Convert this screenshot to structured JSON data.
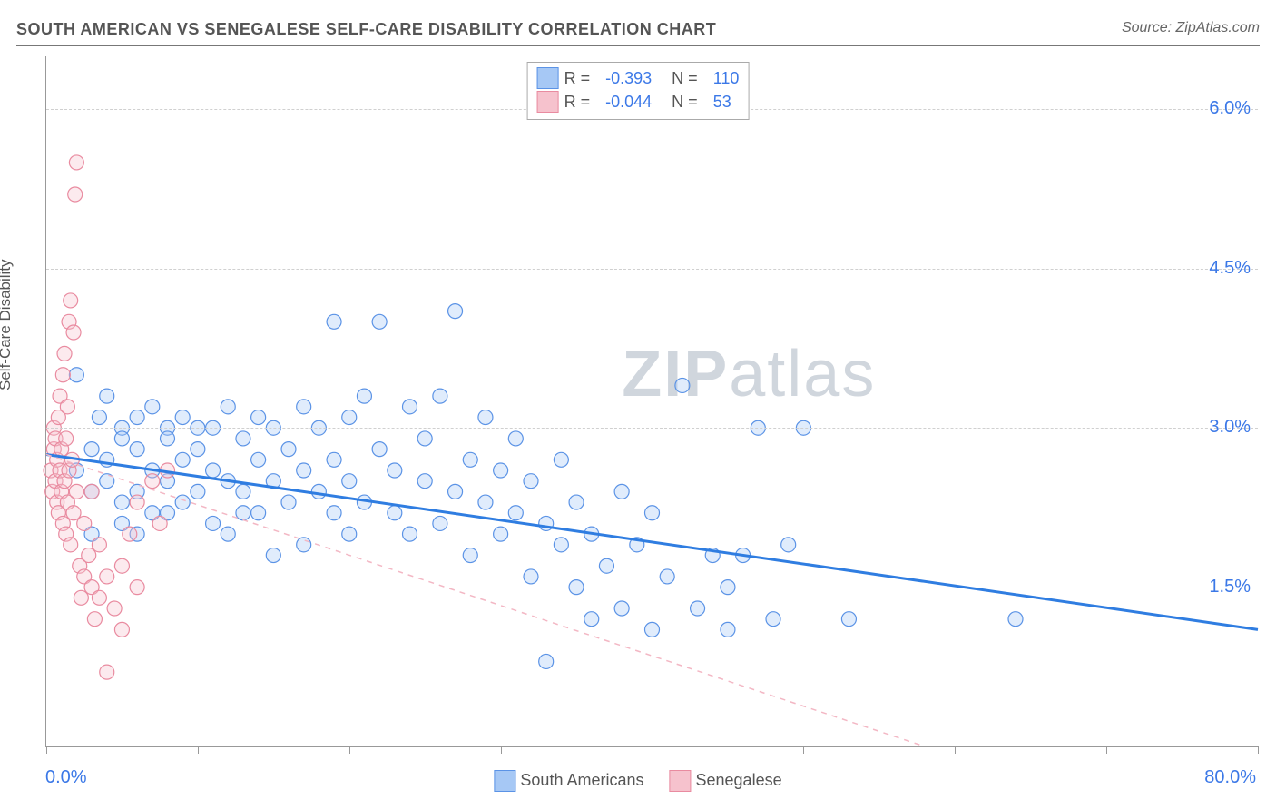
{
  "title": "SOUTH AMERICAN VS SENEGALESE SELF-CARE DISABILITY CORRELATION CHART",
  "source_label": "Source: ZipAtlas.com",
  "watermark": {
    "prefix": "ZIP",
    "suffix": "atlas"
  },
  "y_axis_title": "Self-Care Disability",
  "chart": {
    "type": "scatter",
    "background_color": "#ffffff",
    "grid_color": "#d0d0d0",
    "axis_color": "#999999",
    "tick_label_color": "#3b78e7",
    "xlim": [
      0,
      80
    ],
    "ylim": [
      0,
      6.5
    ],
    "x_tick_positions": [
      0,
      10,
      20,
      30,
      40,
      50,
      60,
      70,
      80
    ],
    "y_ticks": [
      {
        "v": 1.5,
        "label": "1.5%"
      },
      {
        "v": 3.0,
        "label": "3.0%"
      },
      {
        "v": 4.5,
        "label": "4.5%"
      },
      {
        "v": 6.0,
        "label": "6.0%"
      }
    ],
    "x_min_label": "0.0%",
    "x_max_label": "80.0%",
    "marker_radius": 8,
    "tick_fontsize": 20,
    "series": [
      {
        "id": "south_americans",
        "label": "South Americans",
        "color": "#a6c8f5",
        "stroke": "#5b93e6",
        "R": "-0.393",
        "N": "110",
        "trend": {
          "style": "solid",
          "color": "#2f7de1",
          "width": 3,
          "p1": {
            "x": 0,
            "y": 2.75
          },
          "p2": {
            "x": 80,
            "y": 1.1
          }
        },
        "points": [
          {
            "x": 2,
            "y": 2.6
          },
          {
            "x": 3,
            "y": 2.4
          },
          {
            "x": 3,
            "y": 2.8
          },
          {
            "x": 3.5,
            "y": 3.1
          },
          {
            "x": 4,
            "y": 2.5
          },
          {
            "x": 4,
            "y": 2.7
          },
          {
            "x": 5,
            "y": 3.0
          },
          {
            "x": 5,
            "y": 2.3
          },
          {
            "x": 5,
            "y": 2.9
          },
          {
            "x": 6,
            "y": 2.4
          },
          {
            "x": 6,
            "y": 3.1
          },
          {
            "x": 6,
            "y": 2.0
          },
          {
            "x": 7,
            "y": 2.6
          },
          {
            "x": 7,
            "y": 3.2
          },
          {
            "x": 8,
            "y": 2.5
          },
          {
            "x": 8,
            "y": 2.2
          },
          {
            "x": 8,
            "y": 3.0
          },
          {
            "x": 9,
            "y": 2.7
          },
          {
            "x": 9,
            "y": 2.3
          },
          {
            "x": 10,
            "y": 2.8
          },
          {
            "x": 10,
            "y": 2.4
          },
          {
            "x": 10,
            "y": 3.0
          },
          {
            "x": 11,
            "y": 2.1
          },
          {
            "x": 11,
            "y": 2.6
          },
          {
            "x": 12,
            "y": 2.5
          },
          {
            "x": 12,
            "y": 3.2
          },
          {
            "x": 12,
            "y": 2.0
          },
          {
            "x": 13,
            "y": 2.9
          },
          {
            "x": 13,
            "y": 2.4
          },
          {
            "x": 14,
            "y": 2.7
          },
          {
            "x": 14,
            "y": 3.1
          },
          {
            "x": 14,
            "y": 2.2
          },
          {
            "x": 15,
            "y": 2.5
          },
          {
            "x": 15,
            "y": 3.0
          },
          {
            "x": 16,
            "y": 2.3
          },
          {
            "x": 16,
            "y": 2.8
          },
          {
            "x": 17,
            "y": 2.6
          },
          {
            "x": 17,
            "y": 3.2
          },
          {
            "x": 17,
            "y": 1.9
          },
          {
            "x": 18,
            "y": 2.4
          },
          {
            "x": 18,
            "y": 3.0
          },
          {
            "x": 19,
            "y": 4.0
          },
          {
            "x": 19,
            "y": 2.7
          },
          {
            "x": 20,
            "y": 2.5
          },
          {
            "x": 20,
            "y": 3.1
          },
          {
            "x": 20,
            "y": 2.0
          },
          {
            "x": 21,
            "y": 2.3
          },
          {
            "x": 21,
            "y": 3.3
          },
          {
            "x": 22,
            "y": 2.8
          },
          {
            "x": 22,
            "y": 4.0
          },
          {
            "x": 23,
            "y": 2.2
          },
          {
            "x": 23,
            "y": 2.6
          },
          {
            "x": 24,
            "y": 3.2
          },
          {
            "x": 24,
            "y": 2.0
          },
          {
            "x": 25,
            "y": 2.5
          },
          {
            "x": 25,
            "y": 2.9
          },
          {
            "x": 26,
            "y": 2.1
          },
          {
            "x": 26,
            "y": 3.3
          },
          {
            "x": 27,
            "y": 4.1
          },
          {
            "x": 27,
            "y": 2.4
          },
          {
            "x": 28,
            "y": 2.7
          },
          {
            "x": 28,
            "y": 1.8
          },
          {
            "x": 29,
            "y": 2.3
          },
          {
            "x": 29,
            "y": 3.1
          },
          {
            "x": 30,
            "y": 2.0
          },
          {
            "x": 30,
            "y": 2.6
          },
          {
            "x": 31,
            "y": 2.2
          },
          {
            "x": 31,
            "y": 2.9
          },
          {
            "x": 32,
            "y": 1.6
          },
          {
            "x": 32,
            "y": 2.5
          },
          {
            "x": 33,
            "y": 2.1
          },
          {
            "x": 33,
            "y": 0.8
          },
          {
            "x": 34,
            "y": 2.7
          },
          {
            "x": 34,
            "y": 1.9
          },
          {
            "x": 35,
            "y": 1.5
          },
          {
            "x": 35,
            "y": 2.3
          },
          {
            "x": 36,
            "y": 1.2
          },
          {
            "x": 36,
            "y": 2.0
          },
          {
            "x": 37,
            "y": 1.7
          },
          {
            "x": 38,
            "y": 2.4
          },
          {
            "x": 38,
            "y": 1.3
          },
          {
            "x": 39,
            "y": 1.9
          },
          {
            "x": 40,
            "y": 1.1
          },
          {
            "x": 40,
            "y": 2.2
          },
          {
            "x": 41,
            "y": 1.6
          },
          {
            "x": 42,
            "y": 3.4
          },
          {
            "x": 43,
            "y": 1.3
          },
          {
            "x": 44,
            "y": 1.8
          },
          {
            "x": 45,
            "y": 1.1
          },
          {
            "x": 45,
            "y": 1.5
          },
          {
            "x": 46,
            "y": 1.8
          },
          {
            "x": 47,
            "y": 3.0
          },
          {
            "x": 48,
            "y": 1.2
          },
          {
            "x": 49,
            "y": 1.9
          },
          {
            "x": 50,
            "y": 3.0
          },
          {
            "x": 53,
            "y": 1.2
          },
          {
            "x": 64,
            "y": 1.2
          },
          {
            "x": 2,
            "y": 3.5
          },
          {
            "x": 3,
            "y": 2.0
          },
          {
            "x": 4,
            "y": 3.3
          },
          {
            "x": 5,
            "y": 2.1
          },
          {
            "x": 6,
            "y": 2.8
          },
          {
            "x": 7,
            "y": 2.2
          },
          {
            "x": 8,
            "y": 2.9
          },
          {
            "x": 9,
            "y": 3.1
          },
          {
            "x": 11,
            "y": 3.0
          },
          {
            "x": 13,
            "y": 2.2
          },
          {
            "x": 15,
            "y": 1.8
          },
          {
            "x": 19,
            "y": 2.2
          }
        ]
      },
      {
        "id": "senegalese",
        "label": "Senegalese",
        "color": "#f6c2cd",
        "stroke": "#e98ba0",
        "R": "-0.044",
        "N": "53",
        "trend": {
          "style": "dashed",
          "color": "#f3b7c4",
          "width": 1.5,
          "p1": {
            "x": 0,
            "y": 2.75
          },
          "p2": {
            "x": 58,
            "y": 0.0
          }
        },
        "points": [
          {
            "x": 0.3,
            "y": 2.6
          },
          {
            "x": 0.4,
            "y": 2.4
          },
          {
            "x": 0.5,
            "y": 2.8
          },
          {
            "x": 0.5,
            "y": 3.0
          },
          {
            "x": 0.6,
            "y": 2.5
          },
          {
            "x": 0.6,
            "y": 2.9
          },
          {
            "x": 0.7,
            "y": 2.3
          },
          {
            "x": 0.7,
            "y": 2.7
          },
          {
            "x": 0.8,
            "y": 3.1
          },
          {
            "x": 0.8,
            "y": 2.2
          },
          {
            "x": 0.9,
            "y": 2.6
          },
          {
            "x": 0.9,
            "y": 3.3
          },
          {
            "x": 1.0,
            "y": 2.4
          },
          {
            "x": 1.0,
            "y": 2.8
          },
          {
            "x": 1.1,
            "y": 3.5
          },
          {
            "x": 1.1,
            "y": 2.1
          },
          {
            "x": 1.2,
            "y": 2.5
          },
          {
            "x": 1.2,
            "y": 3.7
          },
          {
            "x": 1.3,
            "y": 2.9
          },
          {
            "x": 1.3,
            "y": 2.0
          },
          {
            "x": 1.4,
            "y": 3.2
          },
          {
            "x": 1.4,
            "y": 2.3
          },
          {
            "x": 1.5,
            "y": 4.0
          },
          {
            "x": 1.5,
            "y": 2.6
          },
          {
            "x": 1.6,
            "y": 4.2
          },
          {
            "x": 1.6,
            "y": 1.9
          },
          {
            "x": 1.7,
            "y": 2.7
          },
          {
            "x": 1.8,
            "y": 3.9
          },
          {
            "x": 1.8,
            "y": 2.2
          },
          {
            "x": 1.9,
            "y": 5.2
          },
          {
            "x": 2.0,
            "y": 5.5
          },
          {
            "x": 2.0,
            "y": 2.4
          },
          {
            "x": 2.2,
            "y": 1.7
          },
          {
            "x": 2.3,
            "y": 1.4
          },
          {
            "x": 2.5,
            "y": 2.1
          },
          {
            "x": 2.5,
            "y": 1.6
          },
          {
            "x": 2.8,
            "y": 1.8
          },
          {
            "x": 3.0,
            "y": 1.5
          },
          {
            "x": 3.0,
            "y": 2.4
          },
          {
            "x": 3.2,
            "y": 1.2
          },
          {
            "x": 3.5,
            "y": 1.9
          },
          {
            "x": 3.5,
            "y": 1.4
          },
          {
            "x": 4.0,
            "y": 1.6
          },
          {
            "x": 4.0,
            "y": 0.7
          },
          {
            "x": 4.5,
            "y": 1.3
          },
          {
            "x": 5.0,
            "y": 1.7
          },
          {
            "x": 5.0,
            "y": 1.1
          },
          {
            "x": 5.5,
            "y": 2.0
          },
          {
            "x": 6.0,
            "y": 1.5
          },
          {
            "x": 6.0,
            "y": 2.3
          },
          {
            "x": 7.0,
            "y": 2.5
          },
          {
            "x": 7.5,
            "y": 2.1
          },
          {
            "x": 8.0,
            "y": 2.6
          }
        ]
      }
    ]
  },
  "legend_top": {
    "R_label": "R =",
    "N_label": "N ="
  },
  "legend_bottom_labels": [
    "South Americans",
    "Senegalese"
  ]
}
